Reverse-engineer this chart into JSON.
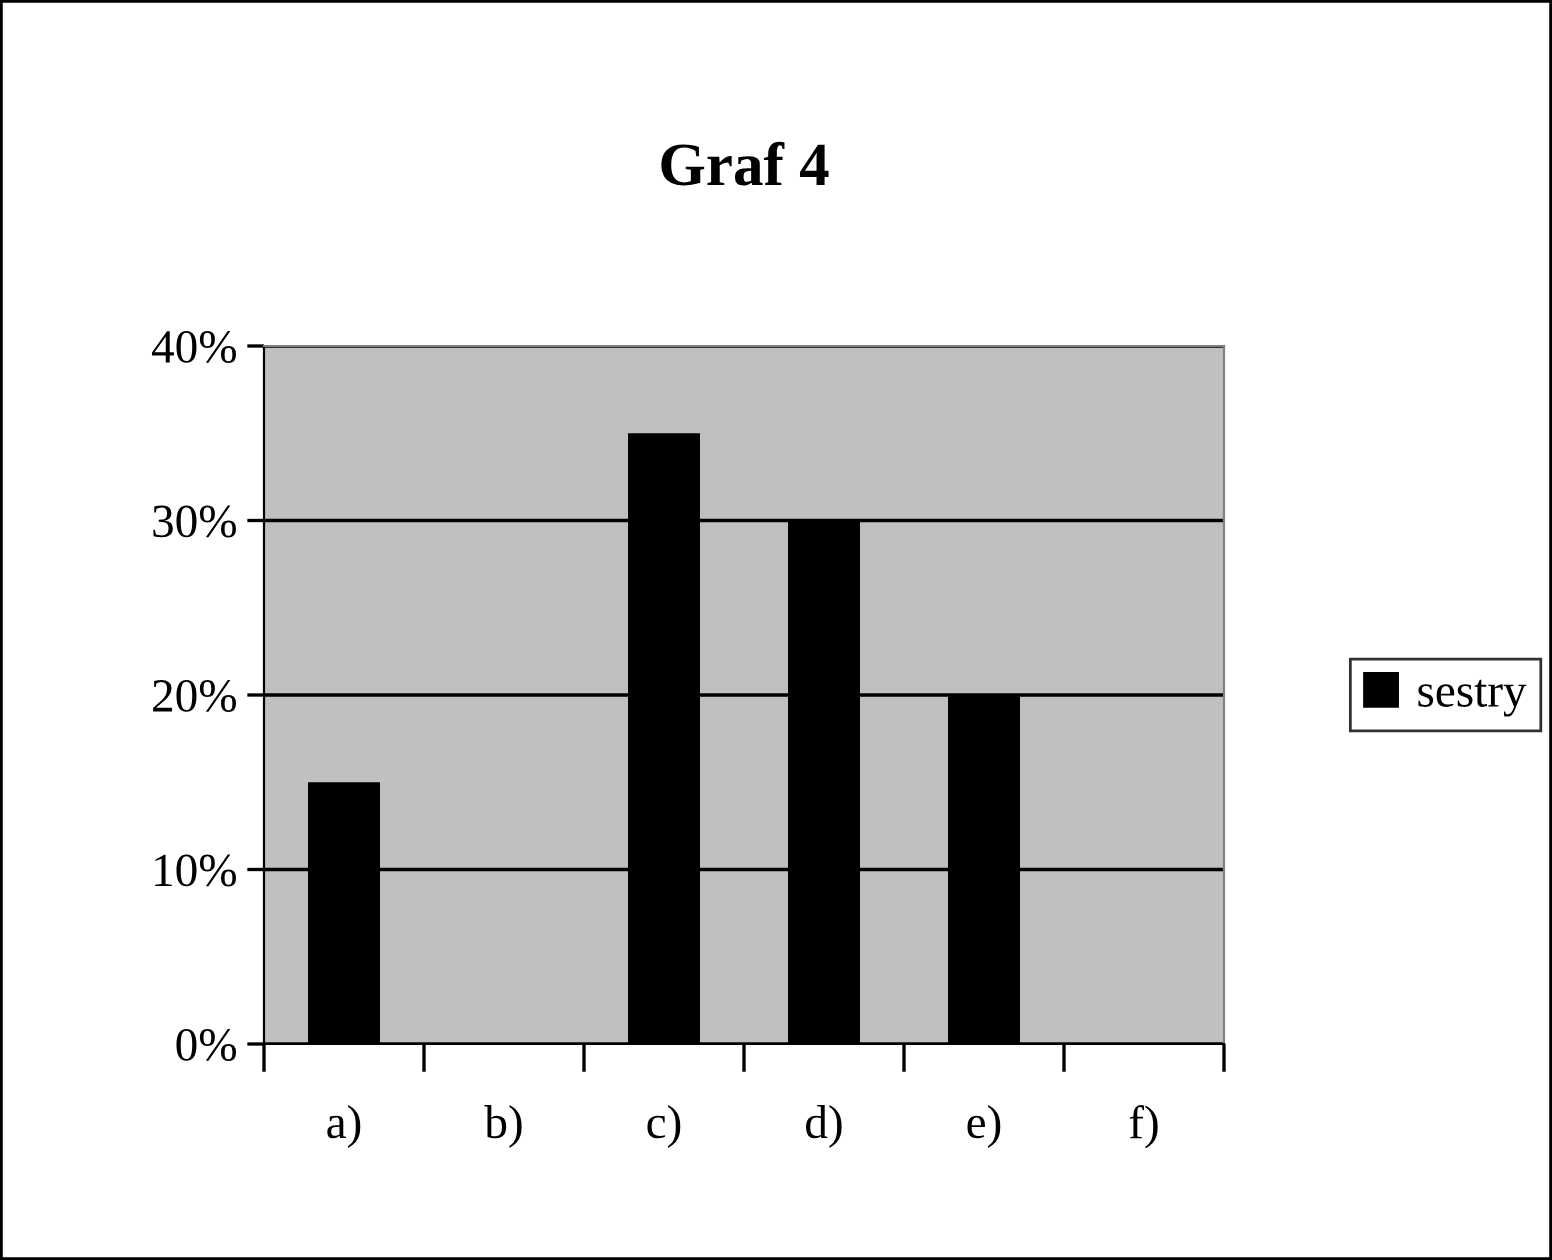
{
  "chart_data": {
    "type": "bar",
    "title": "Graf 4",
    "categories": [
      "a)",
      "b)",
      "c)",
      "d)",
      "e)",
      "f)"
    ],
    "series": [
      {
        "name": "sestry",
        "color": "#000000",
        "values": [
          15,
          0,
          35,
          30,
          20,
          0
        ]
      }
    ],
    "ylim": [
      0,
      40
    ],
    "yticks": [
      {
        "value": 0,
        "label": "0%"
      },
      {
        "value": 10,
        "label": "10%"
      },
      {
        "value": 20,
        "label": "20%"
      },
      {
        "value": 30,
        "label": "30%"
      },
      {
        "value": 40,
        "label": "40%"
      }
    ],
    "grid": "y",
    "legend": "right"
  }
}
